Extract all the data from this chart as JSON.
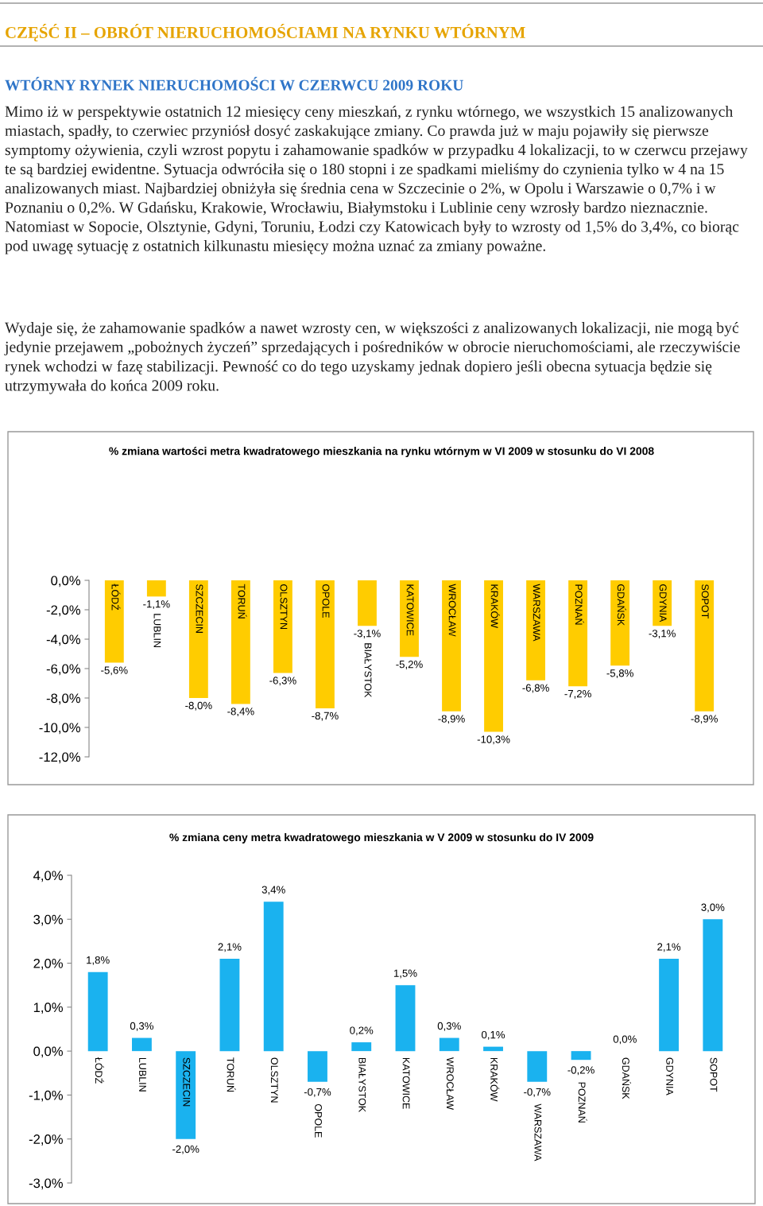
{
  "chart_data": [
    {
      "type": "bar",
      "title": "% zmiana wartości metra kwadratowego mieszkania na rynku wtórnym w VI 2009 w stosunku do VI 2008",
      "annotations": [
        "CZĘŚĆ II – OBRÓT NIERUCHOMOŚCIAMI NA RYNKU WTÓRNYM",
        "WTÓRNY RYNEK NIERUCHOMOŚCI W CZERWCU 2009 ROKU",
        "Mimo iż w perspektywie ostatnich 12 miesięcy ceny mieszkań, z rynku wtórnego, we wszystkich 15 analizowanych miastach, spadły, to czerwiec przyniósł dosyć zaskakujące zmiany. Co prawda już w maju pojawiły się pierwsze symptomy ożywienia, czyli wzrost popytu i zahamowanie spadków w przypadku 4 lokalizacji, to w czerwcu przejawy te są bardziej ewidentne. Sytuacja odwróciła się o 180 stopni i ze spadkami mieliśmy do czynienia tylko w 4 na 15 analizowanych miast. Najbardziej obniżyła się średnia cena w Szczecinie o 2%, w Opolu i Warszawie o 0,7% i w Poznaniu o 0,2%. W Gdańsku, Krakowie, Wrocławiu, Białymstoku i Lublinie ceny wzrosły bardzo nieznacznie. Natomiast w Sopocie, Olsztynie, Gdyni, Toruniu, Łodzi czy Katowicach były to wzrosty od 1,5% do 3,4%, co biorąc pod uwagę sytuację z ostatnich kilkunastu miesięcy można uznać za zmiany poważne.",
        "Wydaje się, że zahamowanie spadków a nawet wzrosty cen, w większości z analizowanych lokalizacji, nie mogą być jedynie przejawem „pobożnych życzeń” sprzedających i pośredników w obrocie nieruchomościami, ale rzeczywiście rynek wchodzi w fazę stabilizacji. Pewność co do tego uzyskamy jednak dopiero jeśli obecna sytuacja będzie się utrzymywała do końca 2009 roku."
      ],
      "categories": [
        "ŁÓDŹ",
        "LUBLIN",
        "SZCZECIN",
        "TORUŃ",
        "OLSZTYN",
        "OPOLE",
        "BIAŁYSTOK",
        "KATOWICE",
        "WROCŁAW",
        "KRAKÓW",
        "WARSZAWA",
        "POZNAŃ",
        "GDAŃSK",
        "GDYNIA",
        "SOPOT"
      ],
      "values": [
        -5.6,
        -1.1,
        -8.0,
        -8.4,
        -6.3,
        -8.7,
        -3.1,
        -5.2,
        -8.9,
        -10.3,
        -6.8,
        -7.2,
        -5.8,
        -3.1,
        -8.9
      ],
      "value_labels": [
        "-5,6%",
        "-1,1%",
        "-8,0%",
        "-8,4%",
        "-6,3%",
        "-8,7%",
        "-3,1%",
        "-5,2%",
        "-8,9%",
        "-10,3%",
        "-6,8%",
        "-7,2%",
        "-5,8%",
        "-3,1%",
        "-8,9%"
      ],
      "color": "#ffcc00",
      "ylim": [
        -12,
        0
      ],
      "yticks": [
        {
          "value": 0,
          "label": "0,0%"
        },
        {
          "value": -2,
          "label": "-2,0%"
        },
        {
          "value": -4,
          "label": "-4,0%"
        },
        {
          "value": -6,
          "label": "-6,0%"
        },
        {
          "value": -8,
          "label": "-8,0%"
        },
        {
          "value": -10,
          "label": "-10,0%"
        },
        {
          "value": -12,
          "label": "-12,0%"
        }
      ],
      "grid": false,
      "legend": false
    },
    {
      "type": "bar",
      "title": "% zmiana ceny metra kwadratowego mieszkania w V 2009 w stosunku do IV 2009",
      "categories": [
        "ŁÓDŹ",
        "LUBLIN",
        "SZCZECIN",
        "TORUŃ",
        "OLSZTYN",
        "OPOLE",
        "BIAŁYSTOK",
        "KATOWICE",
        "WROCŁAW",
        "KRAKÓW",
        "WARSZAWA",
        "POZNAŃ",
        "GDAŃSK",
        "GDYNIA",
        "SOPOT"
      ],
      "values": [
        1.8,
        0.3,
        -2.0,
        2.1,
        3.4,
        -0.7,
        0.2,
        1.5,
        0.3,
        0.1,
        -0.7,
        -0.2,
        0.0,
        2.1,
        3.0
      ],
      "value_labels": [
        "1,8%",
        "0,3%",
        "-2,0%",
        "2,1%",
        "3,4%",
        "-0,7%",
        "0,2%",
        "1,5%",
        "0,3%",
        "0,1%",
        "-0,7%",
        "-0,2%",
        "0,0%",
        "2,1%",
        "3,0%"
      ],
      "color": "#1ab2ef",
      "ylim": [
        -3,
        4
      ],
      "yticks": [
        {
          "value": 4,
          "label": "4,0%"
        },
        {
          "value": 3,
          "label": "3,0%"
        },
        {
          "value": 2,
          "label": "2,0%"
        },
        {
          "value": 1,
          "label": "1,0%"
        },
        {
          "value": 0,
          "label": "0,0%"
        },
        {
          "value": -1,
          "label": "-1,0%"
        },
        {
          "value": -2,
          "label": "-2,0%"
        },
        {
          "value": -3,
          "label": "-3,0%"
        }
      ],
      "grid": false,
      "legend": false
    }
  ]
}
